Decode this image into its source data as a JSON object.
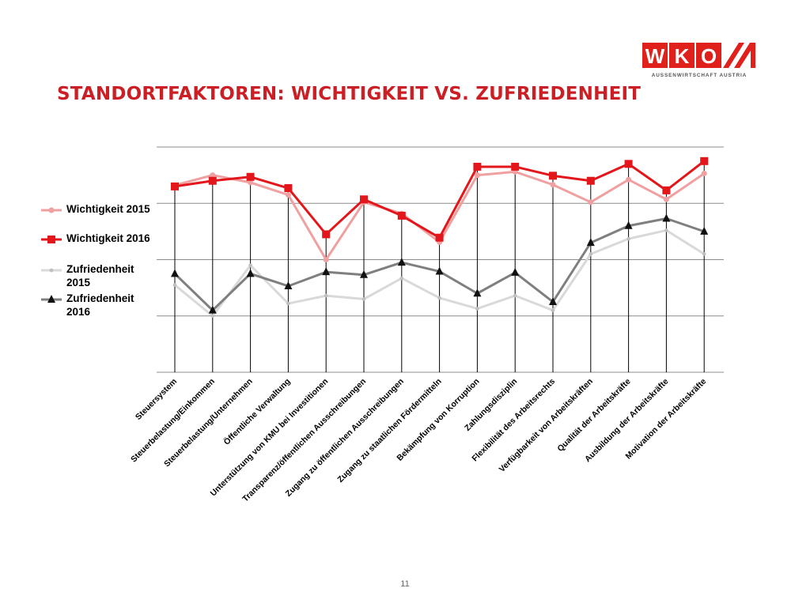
{
  "header": {
    "title": "STANDORTFAKTOREN: WICHTIGKEIT VS. ZUFRIEDENHEIT",
    "logo": {
      "letters": [
        "W",
        "K",
        "O"
      ],
      "subtitle": "AUSSENWIRTSCHAFT AUSTRIA",
      "color": "#e0201b"
    }
  },
  "footer": {
    "page_number": "11"
  },
  "chart_data": {
    "type": "line",
    "title": "",
    "xlabel": "",
    "ylabel": "",
    "ylim": [
      0,
      4
    ],
    "grid": true,
    "legend_position": "left",
    "y_tick_labels_shown": false,
    "categories": [
      "Steuersystem",
      "Steuerbelastung/Einkommen",
      "Steuerbelastung/Unternehmen",
      "Öffentliche Verwaltung",
      "Unterstützung von KMU bei Investitionen",
      "Transparenz/öffentlichen Ausschreibungen",
      "Zugang zu öffentlichen Ausschreibungen",
      "Zugang zu staatlichen Fördermitteln",
      "Bekämpfung von Korruption",
      "Zahlungsdisziplin",
      "Flexibilität des Arbeitsrechts",
      "Verfügbarkeit von Arbeitskräften",
      "Qualität der Arbeitskräfte",
      "Ausbildung der Arbeitskräfte",
      "Motivation der Arbeitskräfte"
    ],
    "series": [
      {
        "name": "Wichtigkeit 2015",
        "color": "#f0a0a0",
        "marker": "circle",
        "values": [
          3.32,
          3.5,
          3.37,
          3.15,
          2.0,
          3.02,
          2.82,
          2.31,
          3.5,
          3.56,
          3.33,
          3.02,
          3.42,
          3.07,
          3.53
        ]
      },
      {
        "name": "Wichtigkeit 2016",
        "color": "#e3161b",
        "marker": "square",
        "values": [
          3.3,
          3.4,
          3.47,
          3.27,
          2.45,
          3.07,
          2.78,
          2.39,
          3.65,
          3.65,
          3.49,
          3.4,
          3.7,
          3.23,
          3.75
        ]
      },
      {
        "name": "Zufriedenheit 2015",
        "color": "#d9d9d9",
        "marker": "circle",
        "values": [
          1.55,
          1.0,
          1.9,
          1.22,
          1.36,
          1.3,
          1.67,
          1.32,
          1.13,
          1.36,
          1.1,
          2.1,
          2.37,
          2.52,
          2.1
        ]
      },
      {
        "name": "Zufriedenheit 2016",
        "color": "#7f7f7f",
        "marker": "triangle",
        "values": [
          1.75,
          1.1,
          1.75,
          1.53,
          1.78,
          1.73,
          1.95,
          1.79,
          1.4,
          1.77,
          1.25,
          2.3,
          2.6,
          2.73,
          2.5
        ]
      }
    ]
  }
}
